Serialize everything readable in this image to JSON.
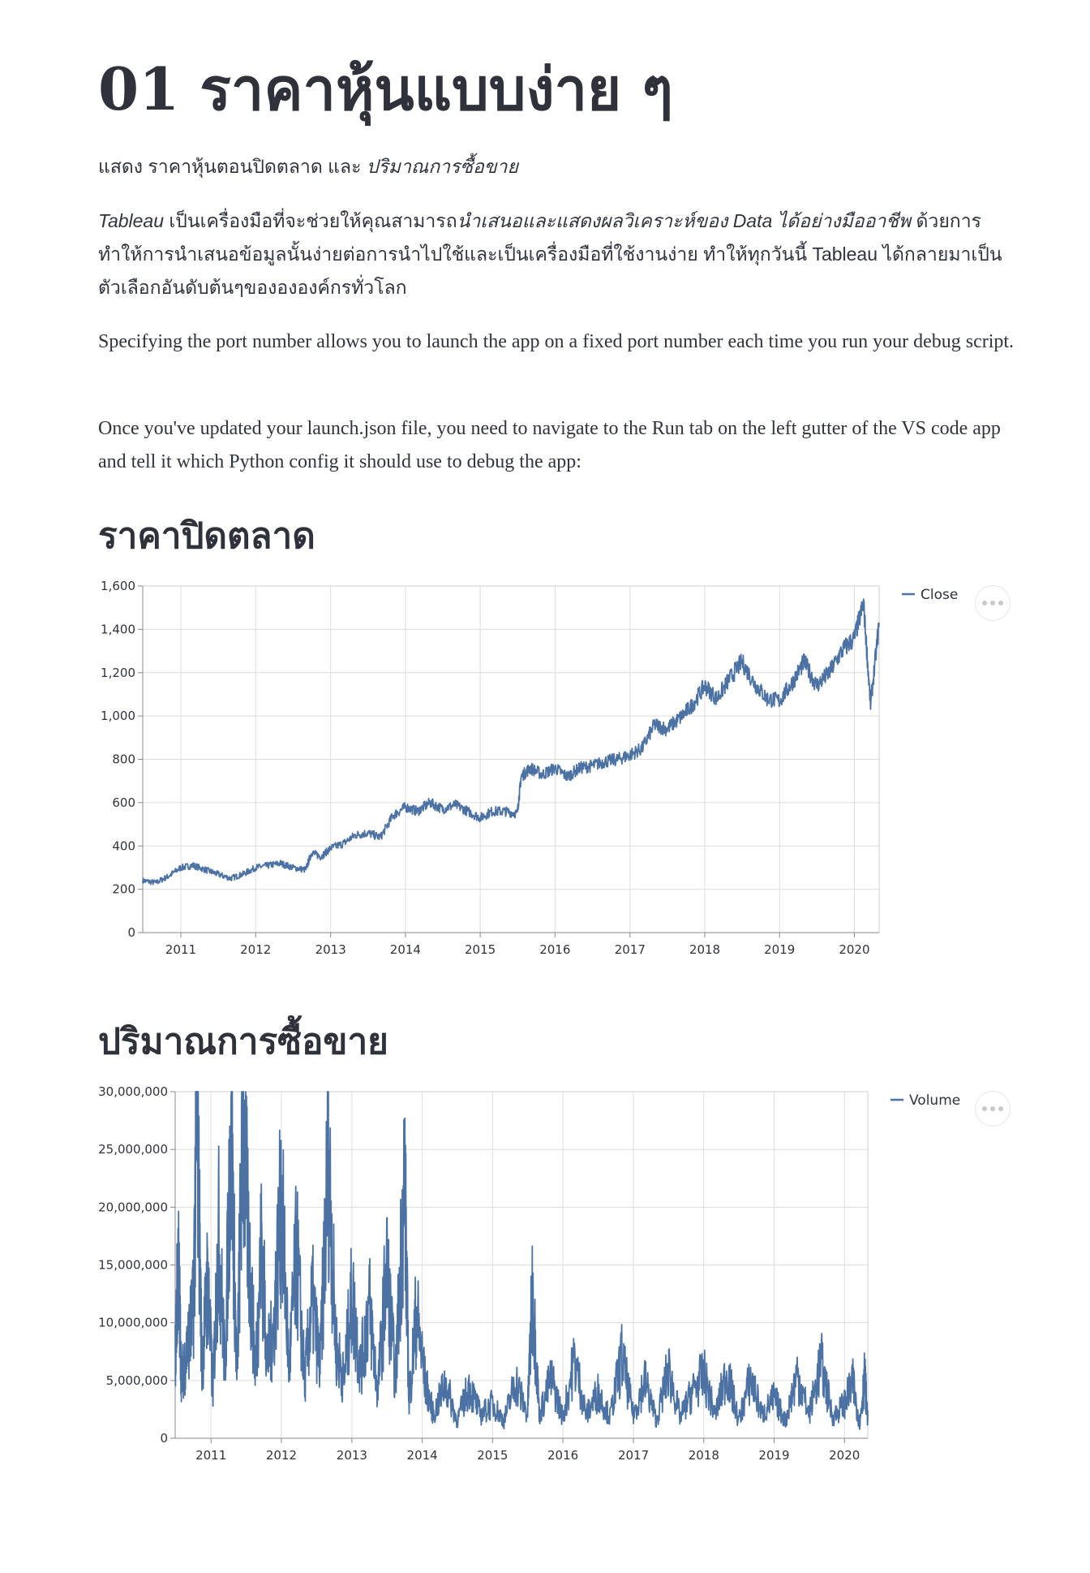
{
  "header": {
    "title": "01 ราคาหุ้นแบบง่าย ๆ"
  },
  "intro": {
    "prefix": "แสดง ",
    "close_label": "ราคาหุ้นตอนปิดตลาด",
    "conj": " และ ",
    "volume_label": "ปริมาณการซื้อขาย"
  },
  "para_thai": {
    "tableau": "Tableau",
    "t1": " เป็นเครื่องมือที่จะช่วยให้คุณสามารถ",
    "em2": "นำเสนอและแสดงผลวิเคราะห์ของ Data ได้อย่างมืออาชีพ",
    "t2": " ด้วยการทำให้การนำเสนอข้อมูลนั้นง่ายต่อการนำไปใช้และเป็นเครื่องมือที่ใช้งานง่าย ทำให้ทุกวันนี้ Tableau ได้กลายมาเป็นตัวเลือกอันดับต้นๆของององค์กรทั่วโลก"
  },
  "para_en_1": "Specifying the port number allows you to launch the app on a fixed port number each time you run your debug script.",
  "para_en_2": "Once you've updated your launch.json file, you need to navigate to the Run tab on the left gutter of the VS code app and tell it which Python config it should use to debug the app:",
  "sections": {
    "close_heading": "ราคาปิดตลาด",
    "volume_heading": "ปริมาณการซื้อขาย"
  },
  "chart_data": [
    {
      "type": "line",
      "title": "",
      "xlabel": "",
      "ylabel": "",
      "legend": "top-right",
      "grid": true,
      "xlim": [
        "2010-06-29",
        "2020-05-01"
      ],
      "ylim": [
        0,
        1600
      ],
      "x_ticks": [
        "2011",
        "2012",
        "2013",
        "2014",
        "2015",
        "2016",
        "2017",
        "2018",
        "2019",
        "2020"
      ],
      "y_ticks": [
        "0",
        "200",
        "400",
        "600",
        "800",
        "1,000",
        "1,200",
        "1,400",
        "1,600"
      ],
      "series": [
        {
          "name": "Close",
          "color": "#4c72a4",
          "x": [
            "2010-06-29",
            "2010-09-01",
            "2010-11-01",
            "2011-01-01",
            "2011-03-01",
            "2011-05-01",
            "2011-07-01",
            "2011-09-01",
            "2011-11-01",
            "2012-01-01",
            "2012-03-01",
            "2012-05-01",
            "2012-07-01",
            "2012-09-01",
            "2012-10-01",
            "2012-11-15",
            "2013-01-01",
            "2013-03-01",
            "2013-05-01",
            "2013-07-01",
            "2013-09-01",
            "2013-11-01",
            "2014-01-01",
            "2014-03-01",
            "2014-05-01",
            "2014-07-01",
            "2014-09-01",
            "2014-11-01",
            "2015-01-01",
            "2015-03-01",
            "2015-05-01",
            "2015-07-01",
            "2015-07-20",
            "2015-09-01",
            "2015-11-01",
            "2016-01-01",
            "2016-03-01",
            "2016-05-01",
            "2016-07-01",
            "2016-09-01",
            "2016-11-01",
            "2017-01-01",
            "2017-03-01",
            "2017-05-01",
            "2017-07-01",
            "2017-09-01",
            "2017-11-01",
            "2018-01-01",
            "2018-03-01",
            "2018-05-01",
            "2018-07-01",
            "2018-09-01",
            "2018-11-01",
            "2019-01-01",
            "2019-03-01",
            "2019-05-01",
            "2019-07-01",
            "2019-09-01",
            "2019-11-01",
            "2020-01-01",
            "2020-02-15",
            "2020-03-20",
            "2020-05-01"
          ],
          "y": [
            240,
            230,
            260,
            300,
            310,
            290,
            270,
            250,
            270,
            300,
            310,
            320,
            300,
            290,
            370,
            350,
            390,
            410,
            450,
            460,
            440,
            540,
            580,
            560,
            600,
            570,
            590,
            560,
            530,
            560,
            560,
            550,
            720,
            760,
            730,
            760,
            720,
            760,
            770,
            790,
            800,
            820,
            850,
            960,
            940,
            990,
            1050,
            1140,
            1080,
            1170,
            1250,
            1150,
            1080,
            1070,
            1150,
            1250,
            1140,
            1200,
            1300,
            1360,
            1520,
            1050,
            1430
          ]
        }
      ]
    },
    {
      "type": "line",
      "title": "",
      "xlabel": "",
      "ylabel": "",
      "legend": "top-right",
      "grid": true,
      "xlim": [
        "2010-06-29",
        "2020-05-01"
      ],
      "ylim": [
        0,
        30000000
      ],
      "x_ticks": [
        "2011",
        "2012",
        "2013",
        "2014",
        "2015",
        "2016",
        "2017",
        "2018",
        "2019",
        "2020"
      ],
      "y_ticks": [
        "0",
        "5,000,000",
        "10,000,000",
        "15,000,000",
        "20,000,000",
        "25,000,000",
        "30,000,000"
      ],
      "series": [
        {
          "name": "Volume",
          "color": "#4c72a4",
          "x": [
            "2010-06-29",
            "2010-07-15",
            "2010-08-01",
            "2010-09-01",
            "2010-10-01",
            "2010-10-20",
            "2010-11-15",
            "2010-12-15",
            "2011-01-10",
            "2011-02-10",
            "2011-03-15",
            "2011-04-15",
            "2011-05-15",
            "2011-06-15",
            "2011-07-20",
            "2011-08-20",
            "2011-09-20",
            "2011-10-20",
            "2011-11-20",
            "2012-01-01",
            "2012-02-10",
            "2012-03-20",
            "2012-05-01",
            "2012-06-10",
            "2012-07-20",
            "2012-09-01",
            "2012-10-10",
            "2012-11-20",
            "2013-01-01",
            "2013-02-15",
            "2013-04-01",
            "2013-05-15",
            "2013-07-01",
            "2013-08-15",
            "2013-10-01",
            "2013-10-25",
            "2013-12-01",
            "2014-01-15",
            "2014-03-01",
            "2014-05-01",
            "2014-07-01",
            "2014-09-01",
            "2014-11-01",
            "2015-01-01",
            "2015-03-01",
            "2015-05-01",
            "2015-07-01",
            "2015-07-27",
            "2015-09-01",
            "2015-11-01",
            "2016-01-01",
            "2016-03-01",
            "2016-05-01",
            "2016-07-01",
            "2016-09-01",
            "2016-11-01",
            "2017-01-01",
            "2017-03-01",
            "2017-05-01",
            "2017-07-01",
            "2017-09-01",
            "2017-11-01",
            "2018-01-01",
            "2018-03-01",
            "2018-05-01",
            "2018-07-01",
            "2018-09-01",
            "2018-11-01",
            "2019-01-01",
            "2019-03-01",
            "2019-05-01",
            "2019-07-01",
            "2019-09-01",
            "2019-11-01",
            "2020-01-01",
            "2020-02-15",
            "2020-03-20",
            "2020-04-15",
            "2020-05-01"
          ],
          "y": [
            7000000,
            15500000,
            5000000,
            8000000,
            11000000,
            29600000,
            6000000,
            14000000,
            4000000,
            17700000,
            6000000,
            28000000,
            5000000,
            27500000,
            15000000,
            6000000,
            17000000,
            7000000,
            9000000,
            21000000,
            6000000,
            16200000,
            5000000,
            12000000,
            6000000,
            25000000,
            8000000,
            5000000,
            12300000,
            6000000,
            11700000,
            4000000,
            14700000,
            5000000,
            23100000,
            3000000,
            11000000,
            5000000,
            2000000,
            4800000,
            1500000,
            4500000,
            2000000,
            3000000,
            1500000,
            5000000,
            2000000,
            12800000,
            2000000,
            5200000,
            1800000,
            6800000,
            2000000,
            4000000,
            1800000,
            7000000,
            2000000,
            5000000,
            1500000,
            6000000,
            1800000,
            4000000,
            5500000,
            2000000,
            5800000,
            1500000,
            5200000,
            2000000,
            3500000,
            1500000,
            5600000,
            2000000,
            6600000,
            1800000,
            3000000,
            4800000,
            1200000,
            5500000,
            1500000
          ]
        }
      ]
    }
  ]
}
